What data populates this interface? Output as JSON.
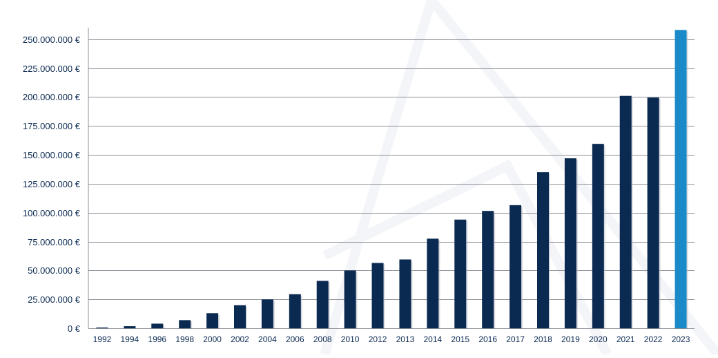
{
  "chart_data": {
    "type": "bar",
    "title": "",
    "xlabel": "",
    "ylabel": "",
    "ylim": [
      0,
      260000000
    ],
    "grid": true,
    "legend": "none",
    "y_ticks": [
      {
        "value": 0,
        "label": "0 €"
      },
      {
        "value": 25000000,
        "label": "25.000.000 €"
      },
      {
        "value": 50000000,
        "label": "50.000.000 €"
      },
      {
        "value": 75000000,
        "label": "75.000.000 €"
      },
      {
        "value": 100000000,
        "label": "100.000.000 €"
      },
      {
        "value": 125000000,
        "label": "125.000.000 €"
      },
      {
        "value": 150000000,
        "label": "150.000.000 €"
      },
      {
        "value": 175000000,
        "label": "175.000.000 €"
      },
      {
        "value": 200000000,
        "label": "200.000.000 €"
      },
      {
        "value": 225000000,
        "label": "225.000.000 €"
      },
      {
        "value": 250000000,
        "label": "250.000.000 €"
      }
    ],
    "categories": [
      "1992",
      "1994",
      "1996",
      "1998",
      "2000",
      "2002",
      "2004",
      "2006",
      "2008",
      "2010",
      "2012",
      "2013",
      "2014",
      "2015",
      "2016",
      "2017",
      "2018",
      "2019",
      "2020",
      "2021",
      "2022",
      "2023"
    ],
    "values": [
      700000,
      1800000,
      4000000,
      7000000,
      13000000,
      20000000,
      25000000,
      29500000,
      41000000,
      50000000,
      56500000,
      59500000,
      77500000,
      94000000,
      101500000,
      106500000,
      135000000,
      147000000,
      159500000,
      201000000,
      199500000,
      258000000
    ],
    "colors": {
      "bar": "#0b2a52",
      "highlight_bar": "#1a8ac8",
      "highlight_index": 21,
      "grid": "#8a8f96",
      "axis_text": "#0b2a52",
      "watermark": "#f1f3f6"
    }
  }
}
